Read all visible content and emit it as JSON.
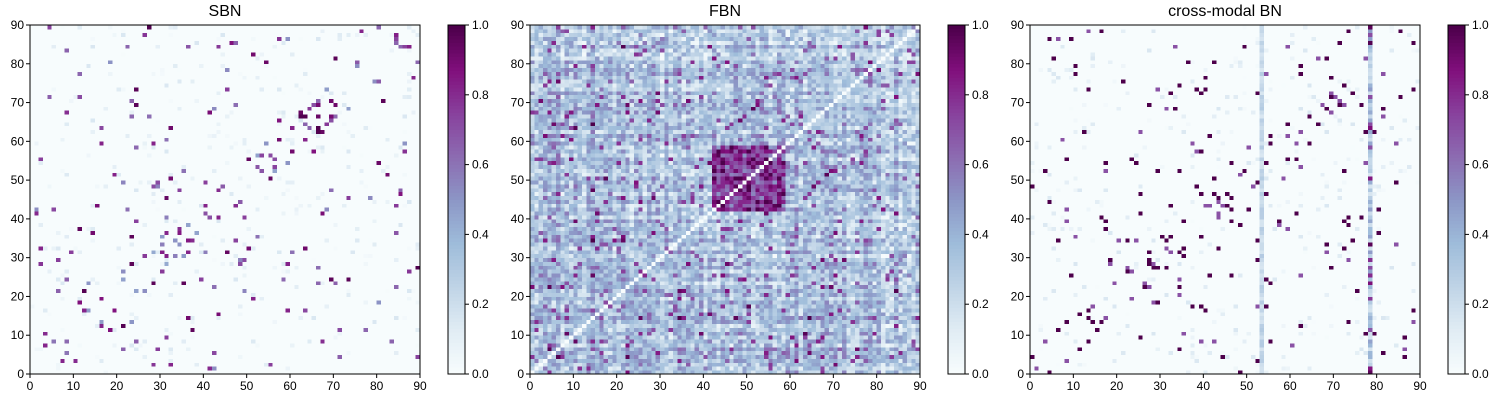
{
  "chart_data": [
    {
      "type": "heatmap",
      "title": "SBN",
      "xlim": [
        0,
        90
      ],
      "ylim": [
        0,
        90
      ],
      "x_ticks": [
        "0",
        "10",
        "20",
        "30",
        "40",
        "50",
        "60",
        "70",
        "80",
        "90"
      ],
      "y_ticks": [
        "0",
        "10",
        "20",
        "30",
        "40",
        "50",
        "60",
        "70",
        "80",
        "90"
      ],
      "grid_size": 90,
      "colorbar": {
        "min": 0.0,
        "max": 1.0,
        "ticks": [
          "0.0",
          "0.2",
          "0.4",
          "0.6",
          "0.8",
          "1.0"
        ]
      },
      "pattern": "sparse",
      "notes": "Mostly near-zero values with scattered strong connections; symmetric"
    },
    {
      "type": "heatmap",
      "title": "FBN",
      "xlim": [
        0,
        90
      ],
      "ylim": [
        0,
        90
      ],
      "x_ticks": [
        "0",
        "10",
        "20",
        "30",
        "40",
        "50",
        "60",
        "70",
        "80",
        "90"
      ],
      "y_ticks": [
        "0",
        "10",
        "20",
        "30",
        "40",
        "50",
        "60",
        "70",
        "80",
        "90"
      ],
      "grid_size": 90,
      "colorbar": {
        "min": 0.0,
        "max": 1.0,
        "ticks": [
          "0.0",
          "0.2",
          "0.4",
          "0.6",
          "0.8",
          "1.0"
        ]
      },
      "pattern": "dense",
      "notes": "Dense mid-range values, strong block near 42-58, white diagonal"
    },
    {
      "type": "heatmap",
      "title": "cross-modal BN",
      "xlim": [
        0,
        90
      ],
      "ylim": [
        0,
        90
      ],
      "x_ticks": [
        "0",
        "10",
        "20",
        "30",
        "40",
        "50",
        "60",
        "70",
        "80",
        "90"
      ],
      "y_ticks": [
        "0",
        "10",
        "20",
        "30",
        "40",
        "50",
        "60",
        "70",
        "80",
        "90"
      ],
      "grid_size": 90,
      "colorbar": {
        "min": 0.0,
        "max": 1.0,
        "ticks": [
          "0.0",
          "0.2",
          "0.4",
          "0.6",
          "0.8",
          "1.0"
        ]
      },
      "pattern": "cross",
      "highlight_columns": [
        53,
        78
      ],
      "notes": "Sparse binary-like connections with highlighted columns near 53 and 78"
    }
  ],
  "colormap": [
    "#f7fcfd",
    "#e0ecf4",
    "#bfd3e6",
    "#9ebcda",
    "#8c96c6",
    "#8c6bb1",
    "#88419d",
    "#810f7c",
    "#4d004b"
  ]
}
